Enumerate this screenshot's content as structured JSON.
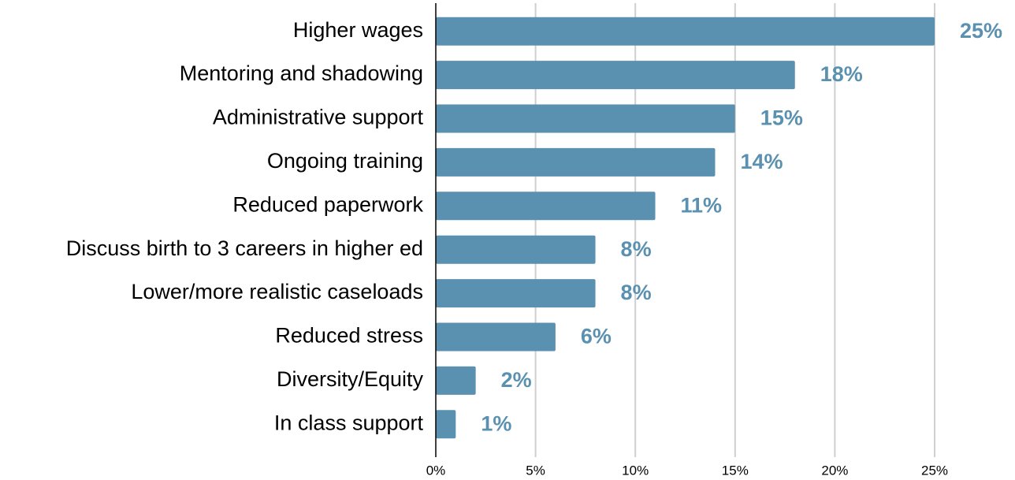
{
  "chart_data": {
    "type": "bar",
    "orientation": "horizontal",
    "categories": [
      "Higher wages",
      "Mentoring and shadowing",
      "Administrative support",
      "Ongoing training",
      "Reduced paperwork",
      "Discuss birth to 3 careers in higher ed",
      "Lower/more realistic caseloads",
      "Reduced stress",
      "Diversity/Equity",
      "In class support"
    ],
    "values": [
      25,
      18,
      15,
      14,
      11,
      8,
      8,
      6,
      2,
      1
    ],
    "value_labels": [
      "25%",
      "18%",
      "15%",
      "14%",
      "11%",
      "8%",
      "8%",
      "6%",
      "2%",
      "1%"
    ],
    "color": "#5a91b0",
    "xlim": [
      0,
      25
    ],
    "xticks": [
      {
        "value": 0,
        "label": "0%"
      },
      {
        "value": 5,
        "label": "5%"
      },
      {
        "value": 10,
        "label": "10%"
      },
      {
        "value": 15,
        "label": "15%"
      },
      {
        "value": 20,
        "label": "20%"
      },
      {
        "value": 25,
        "label": "25%"
      }
    ],
    "grid": true
  }
}
